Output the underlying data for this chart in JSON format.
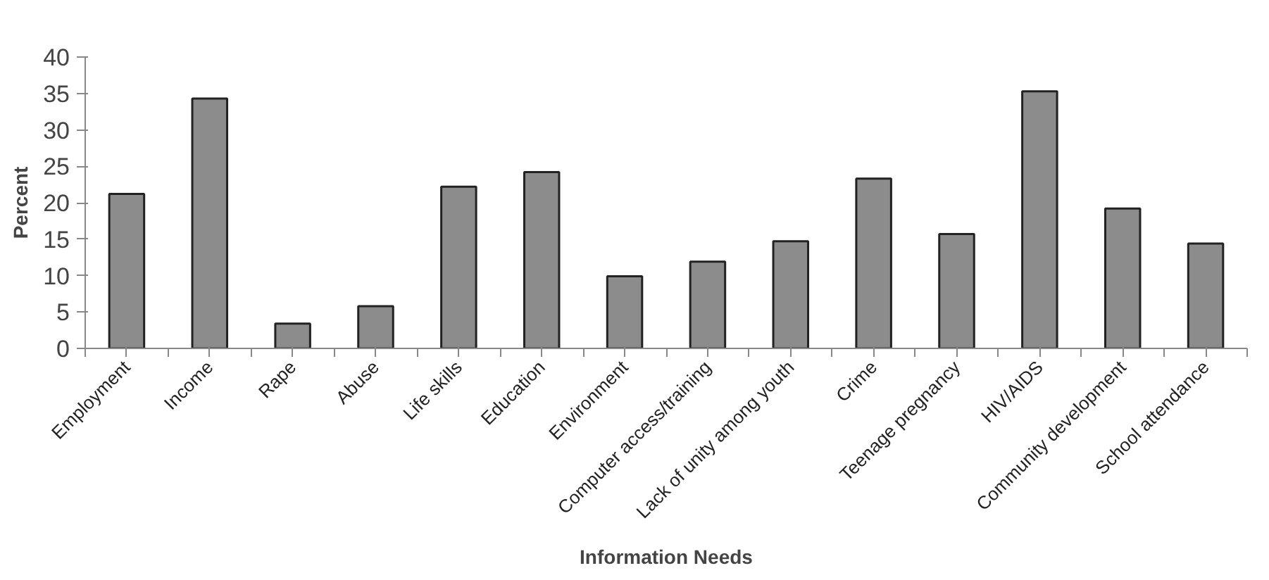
{
  "chart_data": {
    "type": "bar",
    "xlabel": "Information Needs",
    "ylabel": "Percent",
    "categories": [
      "Employment",
      "Income",
      "Rape",
      "Abuse",
      "Life skills",
      "Education",
      "Environment",
      "Computer access/training",
      "Lack of unity among youth",
      "Crime",
      "Teenage pregnancy",
      "HIV/AIDS",
      "Community development",
      "School attendance"
    ],
    "values": [
      21.2,
      34.3,
      3.4,
      5.8,
      22.2,
      24.2,
      9.9,
      11.9,
      14.7,
      23.3,
      15.7,
      35.3,
      19.2,
      14.4
    ],
    "color": "#8c8c8c",
    "ylim": [
      0,
      40
    ],
    "yticks": [
      0,
      5,
      10,
      15,
      20,
      25,
      30,
      35,
      40
    ],
    "grid": false
  }
}
